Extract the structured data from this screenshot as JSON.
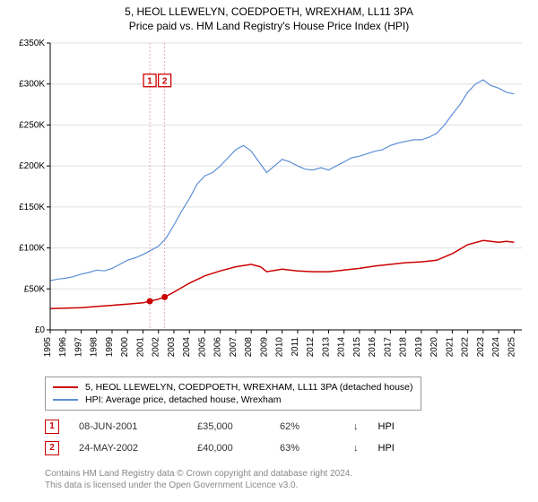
{
  "titles": {
    "line1": "5, HEOL LLEWELYN, COEDPOETH, WREXHAM, LL11 3PA",
    "line2": "Price paid vs. HM Land Registry's House Price Index (HPI)"
  },
  "chart": {
    "type": "line",
    "plot_bg": "#ffffff",
    "grid_color": "#e0e0e0",
    "axis_color": "#000000",
    "axis_fontsize": 10,
    "x": {
      "min": 1995,
      "max": 2025.5,
      "ticks": [
        1995,
        1996,
        1997,
        1998,
        1999,
        2000,
        2001,
        2002,
        2003,
        2004,
        2005,
        2006,
        2007,
        2008,
        2009,
        2010,
        2011,
        2012,
        2013,
        2014,
        2015,
        2016,
        2017,
        2018,
        2019,
        2020,
        2021,
        2022,
        2023,
        2024,
        2025
      ]
    },
    "y": {
      "min": 0,
      "max": 350000,
      "ticks": [
        0,
        50000,
        100000,
        150000,
        200000,
        250000,
        300000,
        350000
      ],
      "tick_labels": [
        "£0",
        "£50K",
        "£100K",
        "£150K",
        "£200K",
        "£250K",
        "£300K",
        "£350K"
      ]
    },
    "series": [
      {
        "name": "property",
        "label": "5, HEOL LLEWELYN, COEDPOETH, WREXHAM, LL11 3PA (detached house)",
        "color": "#cc0000",
        "width": 1.5,
        "points": [
          [
            1995,
            26000
          ],
          [
            1996,
            26500
          ],
          [
            1997,
            27000
          ],
          [
            1998,
            28500
          ],
          [
            1999,
            30000
          ],
          [
            2000,
            31500
          ],
          [
            2001,
            33000
          ],
          [
            2001.44,
            35000
          ],
          [
            2002,
            37500
          ],
          [
            2002.4,
            40000
          ],
          [
            2003,
            46000
          ],
          [
            2004,
            57000
          ],
          [
            2005,
            66000
          ],
          [
            2006,
            72000
          ],
          [
            2007,
            77000
          ],
          [
            2008,
            80000
          ],
          [
            2008.6,
            77000
          ],
          [
            2009,
            71000
          ],
          [
            2010,
            74000
          ],
          [
            2011,
            72000
          ],
          [
            2012,
            71000
          ],
          [
            2013,
            71000
          ],
          [
            2014,
            73000
          ],
          [
            2015,
            75000
          ],
          [
            2016,
            78000
          ],
          [
            2017,
            80000
          ],
          [
            2018,
            82000
          ],
          [
            2019,
            83000
          ],
          [
            2020,
            85000
          ],
          [
            2021,
            93000
          ],
          [
            2022,
            104000
          ],
          [
            2023,
            109000
          ],
          [
            2024,
            107000
          ],
          [
            2024.5,
            108000
          ],
          [
            2025,
            107000
          ]
        ]
      },
      {
        "name": "hpi",
        "label": "HPI: Average price, detached house, Wrexham",
        "color": "#5b8fd6",
        "width": 1.2,
        "points": [
          [
            1995,
            60000
          ],
          [
            1995.5,
            62000
          ],
          [
            1996,
            63000
          ],
          [
            1996.5,
            65000
          ],
          [
            1997,
            68000
          ],
          [
            1997.5,
            70000
          ],
          [
            1998,
            73000
          ],
          [
            1998.5,
            72000
          ],
          [
            1999,
            75000
          ],
          [
            1999.5,
            80000
          ],
          [
            2000,
            85000
          ],
          [
            2000.5,
            88000
          ],
          [
            2001,
            92000
          ],
          [
            2001.5,
            97000
          ],
          [
            2002,
            102000
          ],
          [
            2002.5,
            112000
          ],
          [
            2003,
            128000
          ],
          [
            2003.5,
            145000
          ],
          [
            2004,
            160000
          ],
          [
            2004.5,
            178000
          ],
          [
            2005,
            188000
          ],
          [
            2005.5,
            192000
          ],
          [
            2006,
            200000
          ],
          [
            2006.5,
            210000
          ],
          [
            2007,
            220000
          ],
          [
            2007.5,
            225000
          ],
          [
            2008,
            218000
          ],
          [
            2008.5,
            205000
          ],
          [
            2009,
            192000
          ],
          [
            2009.5,
            200000
          ],
          [
            2010,
            208000
          ],
          [
            2010.5,
            205000
          ],
          [
            2011,
            200000
          ],
          [
            2011.5,
            196000
          ],
          [
            2012,
            195000
          ],
          [
            2012.5,
            198000
          ],
          [
            2013,
            195000
          ],
          [
            2013.5,
            200000
          ],
          [
            2014,
            205000
          ],
          [
            2014.5,
            210000
          ],
          [
            2015,
            212000
          ],
          [
            2015.5,
            215000
          ],
          [
            2016,
            218000
          ],
          [
            2016.5,
            220000
          ],
          [
            2017,
            225000
          ],
          [
            2017.5,
            228000
          ],
          [
            2018,
            230000
          ],
          [
            2018.5,
            232000
          ],
          [
            2019,
            232000
          ],
          [
            2019.5,
            235000
          ],
          [
            2020,
            240000
          ],
          [
            2020.5,
            250000
          ],
          [
            2021,
            263000
          ],
          [
            2021.5,
            275000
          ],
          [
            2022,
            290000
          ],
          [
            2022.5,
            300000
          ],
          [
            2023,
            305000
          ],
          [
            2023.5,
            298000
          ],
          [
            2024,
            295000
          ],
          [
            2024.5,
            290000
          ],
          [
            2025,
            288000
          ]
        ]
      }
    ],
    "sale_markers": [
      {
        "n": "1",
        "x": 2001.44,
        "y": 35000,
        "label_y": 312000
      },
      {
        "n": "2",
        "x": 2002.4,
        "y": 40000,
        "label_y": 312000
      }
    ],
    "marker_box_border": "#cc0000",
    "marker_box_text": "#cc0000",
    "marker_line_color": "#e0b0b0",
    "marker_dot_fill": "#cc0000"
  },
  "legend": {
    "items": [
      {
        "color": "#cc0000",
        "label": "5, HEOL LLEWELYN, COEDPOETH, WREXHAM, LL11 3PA (detached house)"
      },
      {
        "color": "#5b8fd6",
        "label": "HPI: Average price, detached house, Wrexham"
      }
    ]
  },
  "sales": [
    {
      "n": "1",
      "date": "08-JUN-2001",
      "price": "£35,000",
      "pct": "62%",
      "dir": "↓",
      "cmp": "HPI"
    },
    {
      "n": "2",
      "date": "24-MAY-2002",
      "price": "£40,000",
      "pct": "63%",
      "dir": "↓",
      "cmp": "HPI"
    }
  ],
  "footer": {
    "line1": "Contains HM Land Registry data © Crown copyright and database right 2024.",
    "line2": "This data is licensed under the Open Government Licence v3.0."
  }
}
